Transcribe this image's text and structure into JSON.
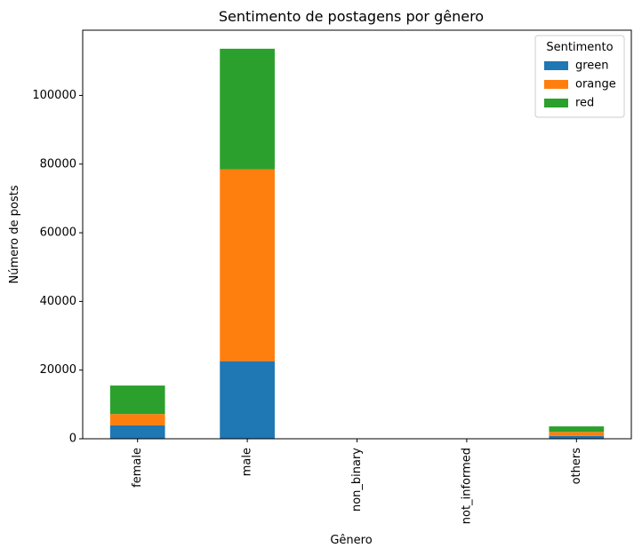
{
  "chart_data": {
    "type": "bar",
    "stacked": true,
    "title": "Sentimento de postagens por gênero",
    "xlabel": "Gênero",
    "ylabel": "Número de posts",
    "categories": [
      "female",
      "male",
      "non_binary",
      "not_informed",
      "others"
    ],
    "series": [
      {
        "name": "green",
        "color": "#1f77b4",
        "values": [
          3900,
          22600,
          0,
          0,
          800
        ]
      },
      {
        "name": "orange",
        "color": "#ff7f0e",
        "values": [
          3300,
          55900,
          0,
          0,
          1200
        ]
      },
      {
        "name": "red",
        "color": "#2ca02c",
        "values": [
          8300,
          35100,
          0,
          0,
          1600
        ]
      }
    ],
    "ylim": [
      0,
      119000
    ],
    "yticks": [
      0,
      20000,
      40000,
      60000,
      80000,
      100000
    ],
    "grid": false,
    "legend": {
      "title": "Sentimento",
      "placement": "top-right"
    }
  }
}
